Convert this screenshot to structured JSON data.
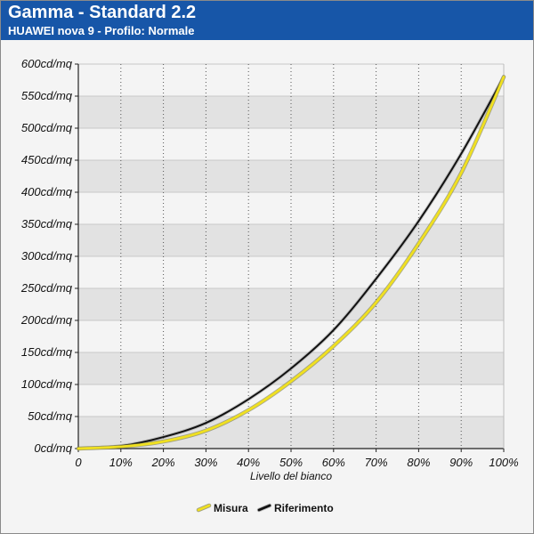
{
  "header": {
    "title": "Gamma - Standard 2.2",
    "subtitle": "HUAWEI nova 9 - Profilo: Normale"
  },
  "colors": {
    "header_bg": "#1756a8",
    "measure": "#f0e020",
    "reference": "#111111",
    "band": "#e2e2e2",
    "plot_bg": "#f4f4f4"
  },
  "chart_data": {
    "type": "line",
    "title": "Gamma - Standard 2.2",
    "subtitle": "HUAWEI nova 9 - Profilo: Normale",
    "xlabel": "Livello del bianco",
    "ylabel": "",
    "xlim": [
      0,
      100
    ],
    "ylim": [
      0,
      600
    ],
    "x_ticks": [
      "0",
      "10%",
      "20%",
      "30%",
      "40%",
      "50%",
      "60%",
      "70%",
      "80%",
      "90%",
      "100%"
    ],
    "y_ticks": [
      "0cd/mq",
      "50cd/mq",
      "100cd/mq",
      "150cd/mq",
      "200cd/mq",
      "250cd/mq",
      "300cd/mq",
      "350cd/mq",
      "400cd/mq",
      "450cd/mq",
      "500cd/mq",
      "550cd/mq",
      "600cd/mq"
    ],
    "grid": "vertical dotted lines, alternating horizontal bands",
    "legend_position": "bottom-center",
    "x": [
      0,
      10,
      20,
      30,
      40,
      50,
      60,
      70,
      80,
      90,
      100
    ],
    "series": [
      {
        "name": "Misura",
        "values": [
          0,
          3,
          11,
          28,
          60,
          105,
          160,
          228,
          320,
          430,
          580
        ]
      },
      {
        "name": "Riferimento",
        "values": [
          0,
          4,
          18,
          40,
          77,
          125,
          185,
          265,
          355,
          460,
          580
        ]
      }
    ]
  }
}
